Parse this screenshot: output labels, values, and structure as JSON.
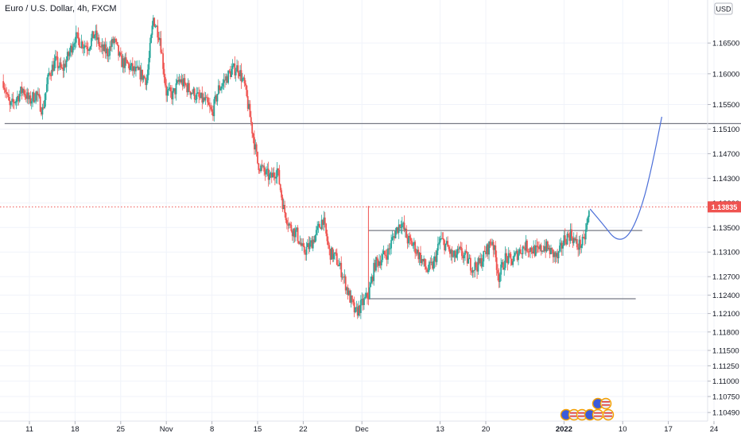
{
  "chart_data": {
    "type": "candlestick",
    "title": "Euro / U.S. Dollar, 4h, FXCM",
    "currency_label": "USD",
    "ylim": [
      1.1035,
      1.172
    ],
    "y_ticks": [
      "1.16500",
      "1.16000",
      "1.15500",
      "1.15100",
      "1.14700",
      "1.14300",
      "1.13900",
      "1.13500",
      "1.13100",
      "1.12700",
      "1.12400",
      "1.12100",
      "1.11800",
      "1.11500",
      "1.11250",
      "1.11000",
      "1.10750",
      "1.10490"
    ],
    "x_ticks": [
      {
        "label": "11",
        "day": 11
      },
      {
        "label": "18",
        "day": 18
      },
      {
        "label": "25",
        "day": 25
      },
      {
        "label": "Nov",
        "day": 32
      },
      {
        "label": "8",
        "day": 39
      },
      {
        "label": "15",
        "day": 46
      },
      {
        "label": "22",
        "day": 53
      },
      {
        "label": "Dec",
        "day": 62
      },
      {
        "label": "13",
        "day": 74
      },
      {
        "label": "20",
        "day": 81
      },
      {
        "label": "2022",
        "day": 93
      },
      {
        "label": "10",
        "day": 102
      },
      {
        "label": "17",
        "day": 109
      },
      {
        "label": "24",
        "day": 116
      }
    ],
    "last_price": "1.13835",
    "last_value": 1.13835,
    "colors": {
      "up": "#26a69a",
      "down": "#ef5350",
      "line": "#787b86",
      "curve": "#4c6fd8",
      "price_badge": "#ef5350",
      "price_line": "#ef5350"
    },
    "price_series": [
      [
        7,
        1.1588
      ],
      [
        8,
        1.1545
      ],
      [
        9,
        1.156
      ],
      [
        10,
        1.1575
      ],
      [
        11,
        1.1555
      ],
      [
        12,
        1.1568
      ],
      [
        13,
        1.154
      ],
      [
        14,
        1.16
      ],
      [
        15,
        1.162
      ],
      [
        16,
        1.1605
      ],
      [
        17,
        1.163
      ],
      [
        18,
        1.166
      ],
      [
        19,
        1.165
      ],
      [
        20,
        1.1645
      ],
      [
        21,
        1.1665
      ],
      [
        22,
        1.164
      ],
      [
        23,
        1.1635
      ],
      [
        24,
        1.1655
      ],
      [
        25,
        1.162
      ],
      [
        26,
        1.1615
      ],
      [
        27,
        1.1605
      ],
      [
        28,
        1.16
      ],
      [
        29,
        1.159
      ],
      [
        30,
        1.169
      ],
      [
        31,
        1.166
      ],
      [
        32,
        1.157
      ],
      [
        33,
        1.1565
      ],
      [
        34,
        1.159
      ],
      [
        35,
        1.158
      ],
      [
        36,
        1.157
      ],
      [
        37,
        1.156
      ],
      [
        38,
        1.1555
      ],
      [
        39,
        1.1535
      ],
      [
        40,
        1.1575
      ],
      [
        41,
        1.159
      ],
      [
        42,
        1.1605
      ],
      [
        43,
        1.161
      ],
      [
        44,
        1.158
      ],
      [
        45,
        1.152
      ],
      [
        46,
        1.1455
      ],
      [
        47,
        1.144
      ],
      [
        48,
        1.143
      ],
      [
        49,
        1.1445
      ],
      [
        50,
        1.138
      ],
      [
        51,
        1.135
      ],
      [
        52,
        1.134
      ],
      [
        53,
        1.131
      ],
      [
        54,
        1.132
      ],
      [
        55,
        1.134
      ],
      [
        56,
        1.1365
      ],
      [
        57,
        1.131
      ],
      [
        58,
        1.13
      ],
      [
        59,
        1.1275
      ],
      [
        60,
        1.124
      ],
      [
        61,
        1.121
      ],
      [
        62,
        1.1225
      ],
      [
        63,
        1.124
      ],
      [
        64,
        1.129
      ],
      [
        65,
        1.13
      ],
      [
        66,
        1.131
      ],
      [
        67,
        1.134
      ],
      [
        68,
        1.136
      ],
      [
        69,
        1.133
      ],
      [
        70,
        1.132
      ],
      [
        71,
        1.13
      ],
      [
        72,
        1.128
      ],
      [
        73,
        1.129
      ],
      [
        74,
        1.133
      ],
      [
        75,
        1.132
      ],
      [
        76,
        1.13
      ],
      [
        77,
        1.131
      ],
      [
        78,
        1.13
      ],
      [
        79,
        1.1285
      ],
      [
        80,
        1.129
      ],
      [
        81,
        1.131
      ],
      [
        82,
        1.133
      ],
      [
        83,
        1.127
      ],
      [
        84,
        1.13
      ],
      [
        85,
        1.1295
      ],
      [
        86,
        1.131
      ],
      [
        87,
        1.132
      ],
      [
        88,
        1.1315
      ],
      [
        89,
        1.131
      ],
      [
        90,
        1.132
      ],
      [
        91,
        1.131
      ],
      [
        92,
        1.13
      ],
      [
        93,
        1.133
      ],
      [
        94,
        1.134
      ],
      [
        95,
        1.132
      ],
      [
        96,
        1.1325
      ],
      [
        97,
        1.1383
      ]
    ],
    "horizontal_levels": [
      {
        "name": "resistance",
        "value": 1.1519,
        "from_day": 7.2,
        "to_day": 124
      },
      {
        "name": "range-top",
        "value": 1.1345,
        "from_day": 63,
        "to_day": 105
      },
      {
        "name": "range-bottom",
        "value": 1.1234,
        "from_day": 63,
        "to_day": 104
      }
    ],
    "projection_curve": [
      [
        97,
        1.138
      ],
      [
        99,
        1.1355
      ],
      [
        101,
        1.1328
      ],
      [
        103,
        1.1335
      ],
      [
        105,
        1.1385
      ],
      [
        106.5,
        1.145
      ],
      [
        108,
        1.153
      ]
    ]
  }
}
